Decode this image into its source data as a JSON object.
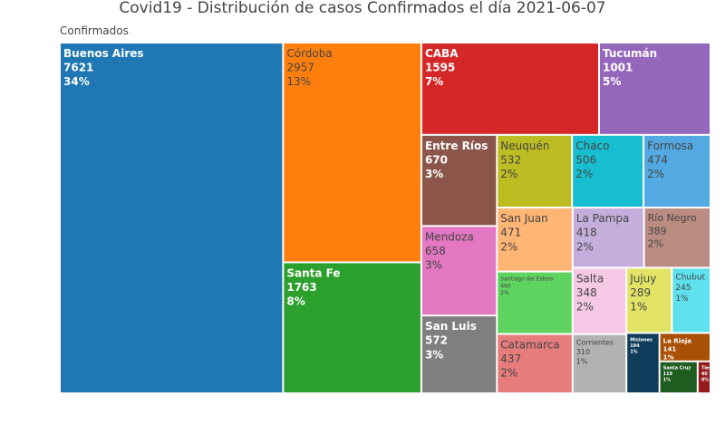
{
  "chart_data": {
    "type": "treemap",
    "title": "Covid19 - Distribución de casos Confirmados el día  2021-06-07",
    "root_label": "Confirmados",
    "items": [
      {
        "name": "Buenos Aires",
        "value": 7621,
        "percent": "34%",
        "color": "#1f77b4"
      },
      {
        "name": "Córdoba",
        "value": 2957,
        "percent": "13%",
        "color": "#ff7f0e"
      },
      {
        "name": "Santa Fe",
        "value": 1763,
        "percent": "8%",
        "color": "#2ca02c"
      },
      {
        "name": "CABA",
        "value": 1595,
        "percent": "7%",
        "color": "#d62728"
      },
      {
        "name": "Tucumán",
        "value": 1001,
        "percent": "5%",
        "color": "#9467bd"
      },
      {
        "name": "Entre Ríos",
        "value": 670,
        "percent": "3%",
        "color": "#8c564b"
      },
      {
        "name": "Mendoza",
        "value": 658,
        "percent": "3%",
        "color": "#e377c2"
      },
      {
        "name": "San Luis",
        "value": 572,
        "percent": "3%",
        "color": "#7f7f7f"
      },
      {
        "name": "Neuquén",
        "value": 532,
        "percent": "2%",
        "color": "#bcbd22"
      },
      {
        "name": "Chaco",
        "value": 506,
        "percent": "2%",
        "color": "#17becf"
      },
      {
        "name": "Formosa",
        "value": 474,
        "percent": "2%",
        "color": "#53a9e2"
      },
      {
        "name": "San Juan",
        "value": 471,
        "percent": "2%",
        "color": "#ffb574"
      },
      {
        "name": "Santiago del Estero",
        "value": 460,
        "percent": "2%",
        "color": "#5fd35f"
      },
      {
        "name": "Catamarca",
        "value": 437,
        "percent": "2%",
        "color": "#e77c7c"
      },
      {
        "name": "La Pampa",
        "value": 418,
        "percent": "2%",
        "color": "#c5aedc"
      },
      {
        "name": "Río Negro",
        "value": 389,
        "percent": "2%",
        "color": "#ba8c82"
      },
      {
        "name": "Salta",
        "value": 348,
        "percent": "2%",
        "color": "#f5c8e6"
      },
      {
        "name": "Corrientes",
        "value": 310,
        "percent": "1%",
        "color": "#b2b2b2"
      },
      {
        "name": "Jujuy",
        "value": 289,
        "percent": "1%",
        "color": "#e3e466"
      },
      {
        "name": "Chubut",
        "value": 245,
        "percent": "1%",
        "color": "#5ee0ed"
      },
      {
        "name": "Misiones",
        "value": 194,
        "percent": "1%",
        "color": "#103c5b"
      },
      {
        "name": "La Rioja",
        "value": 141,
        "percent": "1%",
        "color": "#a85005"
      },
      {
        "name": "Santa Cruz",
        "value": 119,
        "percent": "1%",
        "color": "#1f5c1f"
      },
      {
        "name": "Tierra del Fuego",
        "value": 40,
        "percent": "0%",
        "color": "#961b1c"
      }
    ]
  }
}
